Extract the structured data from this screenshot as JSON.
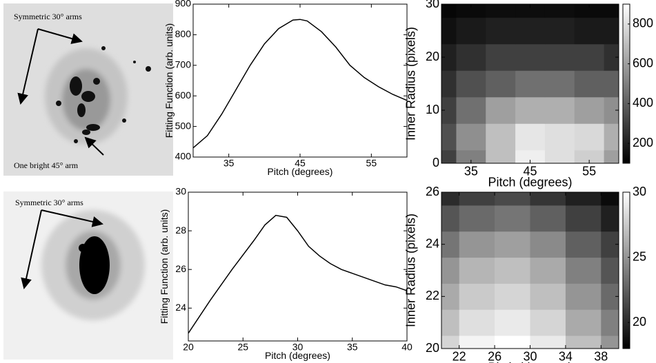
{
  "images": [
    {
      "annotations": [
        "Symmetric 30° arms",
        "One bright 45° arm"
      ]
    },
    {
      "annotations": [
        "Symmetric 30° arms"
      ]
    }
  ],
  "chart_data": [
    {
      "type": "line",
      "xlabel": "Pitch (degrees)",
      "ylabel": "Fitting Function (arb. units)",
      "x": [
        30,
        32,
        34,
        36,
        38,
        40,
        42,
        44,
        45,
        46,
        48,
        50,
        52,
        54,
        56,
        58,
        60
      ],
      "values": [
        430,
        470,
        540,
        620,
        700,
        770,
        820,
        848,
        850,
        845,
        810,
        760,
        700,
        660,
        630,
        605,
        585
      ],
      "color": "#000000",
      "xlim": [
        30,
        60
      ],
      "xticks": [
        35,
        45,
        55
      ],
      "ylim": [
        400,
        900
      ],
      "yticks": [
        400,
        500,
        600,
        700,
        800,
        900
      ]
    },
    {
      "type": "contour",
      "xlabel": "Pitch (degrees)",
      "ylabel": "Inner Radius (pixels)",
      "x": [
        30,
        35,
        40,
        45,
        50,
        55,
        60
      ],
      "y": [
        0,
        5,
        10,
        15,
        20,
        25,
        30
      ],
      "z": [
        [
          300,
          500,
          700,
          850,
          800,
          750,
          600
        ],
        [
          350,
          550,
          700,
          820,
          800,
          780,
          650
        ],
        [
          300,
          450,
          600,
          650,
          650,
          600,
          550
        ],
        [
          250,
          350,
          400,
          450,
          450,
          400,
          400
        ],
        [
          200,
          250,
          300,
          300,
          300,
          300,
          250
        ],
        [
          150,
          180,
          200,
          200,
          200,
          180,
          180
        ],
        [
          120,
          130,
          140,
          140,
          140,
          130,
          130
        ]
      ],
      "xlim": [
        30,
        60
      ],
      "xticks": [
        35,
        45,
        55
      ],
      "ylim": [
        0,
        30
      ],
      "yticks": [
        0,
        10,
        20,
        30
      ],
      "zlim": [
        100,
        900
      ],
      "zticks": [
        200,
        400,
        600,
        800
      ]
    },
    {
      "type": "line",
      "xlabel": "Pitch (degrees)",
      "ylabel": "Fitting Function (arb. units)",
      "x": [
        20,
        22,
        24,
        26,
        27,
        28,
        29,
        30,
        31,
        32,
        33,
        34,
        35,
        36,
        37,
        38,
        39,
        40
      ],
      "values": [
        22.7,
        24.4,
        26.0,
        27.5,
        28.3,
        28.8,
        28.7,
        28.0,
        27.2,
        26.7,
        26.3,
        26.0,
        25.8,
        25.6,
        25.4,
        25.2,
        25.1,
        24.9
      ],
      "color": "#000000",
      "xlim": [
        20,
        40
      ],
      "xticks": [
        20,
        25,
        30,
        35,
        40
      ],
      "ylim": [
        22.3,
        30
      ],
      "yticks": [
        24,
        26,
        28,
        30
      ]
    },
    {
      "type": "contour",
      "xlabel": "Pitch (degrees)",
      "ylabel": "Inner Radius (pixels)",
      "x": [
        20,
        24,
        28,
        32,
        36,
        40
      ],
      "y": [
        20,
        21,
        22,
        23,
        24,
        25,
        26
      ],
      "z": [
        [
          28,
          29.5,
          30,
          29,
          27,
          25
        ],
        [
          27,
          28.5,
          29,
          28,
          26,
          24
        ],
        [
          26,
          27.5,
          28,
          27,
          25,
          23
        ],
        [
          25,
          26.5,
          27,
          26,
          24,
          22
        ],
        [
          23.5,
          25,
          25.5,
          24.5,
          22.5,
          21
        ],
        [
          22,
          23,
          23.5,
          22.5,
          21,
          19.5
        ],
        [
          20,
          21,
          21.5,
          20.5,
          19.5,
          18.5
        ]
      ],
      "xlim": [
        20,
        40
      ],
      "xticks": [
        22,
        26,
        30,
        34,
        38
      ],
      "ylim": [
        20,
        26
      ],
      "yticks": [
        20,
        22,
        24,
        26
      ],
      "zlim": [
        18,
        30
      ],
      "zticks": [
        20,
        25,
        30
      ]
    }
  ]
}
